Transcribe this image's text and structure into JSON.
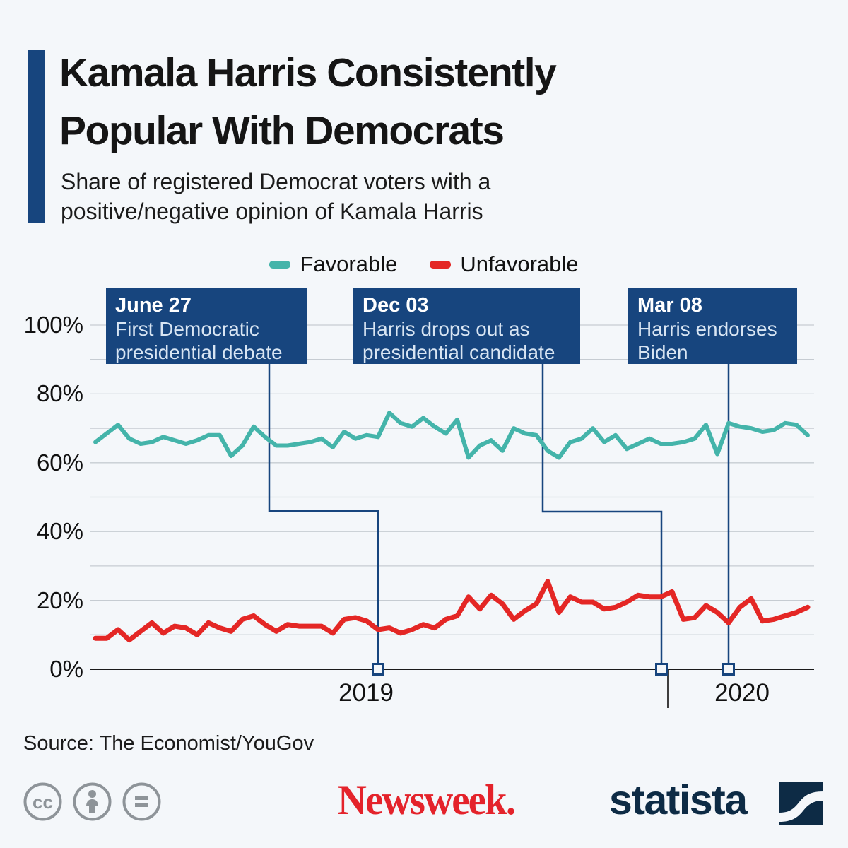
{
  "header": {
    "title_line1": "Kamala Harris Consistently",
    "title_line2": "Popular With Democrats",
    "subtitle_line1": "Share of registered Democrat voters with a",
    "subtitle_line2": "positive/negative opinion of Kamala Harris"
  },
  "legend": [
    {
      "label": "Favorable",
      "color": "#44B4AA"
    },
    {
      "label": "Unfavorable",
      "color": "#E42725"
    }
  ],
  "annotations": [
    {
      "date": "June 27",
      "line1": "First Democratic",
      "line2": "presidential debate"
    },
    {
      "date": "Dec 03",
      "line1": "Harris drops out as",
      "line2": "presidential candidate"
    },
    {
      "date": "Mar 08",
      "line1": "Harris endorses",
      "line2": "Biden"
    }
  ],
  "chart_data": {
    "type": "line",
    "title": "Share of registered Democrat voters with a positive/negative opinion of Kamala Harris",
    "x_axis": {
      "labels": [
        "2019",
        "2020"
      ],
      "range": "Jan 2019 - Apr 2020",
      "grid": "off"
    },
    "y_axis": {
      "tick_labels": [
        "0%",
        "20%",
        "40%",
        "60%",
        "80%",
        "100%"
      ],
      "ylim": [
        0,
        100
      ],
      "grid_step_pct": 10,
      "grid": "on"
    },
    "legend_position": "top-center",
    "series": [
      {
        "name": "Favorable",
        "color": "#44B4AA",
        "values": [
          66,
          68.5,
          71,
          67,
          65.5,
          66,
          67.5,
          66.5,
          65.5,
          66.5,
          68,
          68,
          62,
          65,
          70.5,
          67.5,
          65,
          65,
          65.5,
          66,
          67,
          64.5,
          69,
          67,
          68,
          67.5,
          74.5,
          71.5,
          70.5,
          73,
          70.5,
          68.5,
          72.5,
          61.5,
          65,
          66.5,
          63.5,
          70,
          68.5,
          68,
          63.5,
          61.5,
          66,
          67,
          70,
          66,
          68,
          64,
          65.5,
          67,
          65.5,
          65.5,
          66,
          67,
          71,
          62.5,
          71.5,
          70.5,
          70,
          69,
          69.5,
          71.5,
          71,
          68
        ]
      },
      {
        "name": "Unfavorable",
        "color": "#E42725",
        "values": [
          9,
          9,
          11.5,
          8.5,
          11,
          13.5,
          10.5,
          12.5,
          12,
          10,
          13.5,
          12,
          11,
          14.5,
          15.5,
          13,
          11,
          13,
          12.5,
          12.5,
          12.5,
          10.5,
          14.5,
          15,
          14,
          11.5,
          12,
          10.5,
          11.5,
          13,
          12,
          14.5,
          15.5,
          21,
          17.5,
          21.5,
          19,
          14.5,
          17,
          19,
          25.5,
          16.5,
          21,
          19.5,
          19.5,
          17.5,
          18,
          19.5,
          21.5,
          21,
          21,
          22.5,
          14.5,
          15,
          18.5,
          16.5,
          13.5,
          18,
          20.5,
          14,
          14.5,
          15.5,
          16.5,
          18
        ]
      }
    ],
    "event_markers": [
      {
        "date": "June 27",
        "text": "First Democratic presidential debate"
      },
      {
        "date": "Dec 03",
        "text": "Harris drops out as presidential candidate"
      },
      {
        "date": "Mar 08",
        "text": "Harris endorses Biden"
      }
    ]
  },
  "source": {
    "label": "Source: The Economist/YouGov"
  },
  "footer": {
    "newsweek": "Newsweek.",
    "statista": "statista"
  },
  "colors": {
    "background": "#F4F7FA",
    "navy": "#17457E",
    "favorable": "#44B4AA",
    "unfavorable": "#E42725",
    "gridline": "#C6CCD2",
    "axis": "#1A1A1A",
    "newsweek_red": "#E4232B",
    "statista_navy": "#0D2B45",
    "cc_gray": "#8E9499"
  }
}
